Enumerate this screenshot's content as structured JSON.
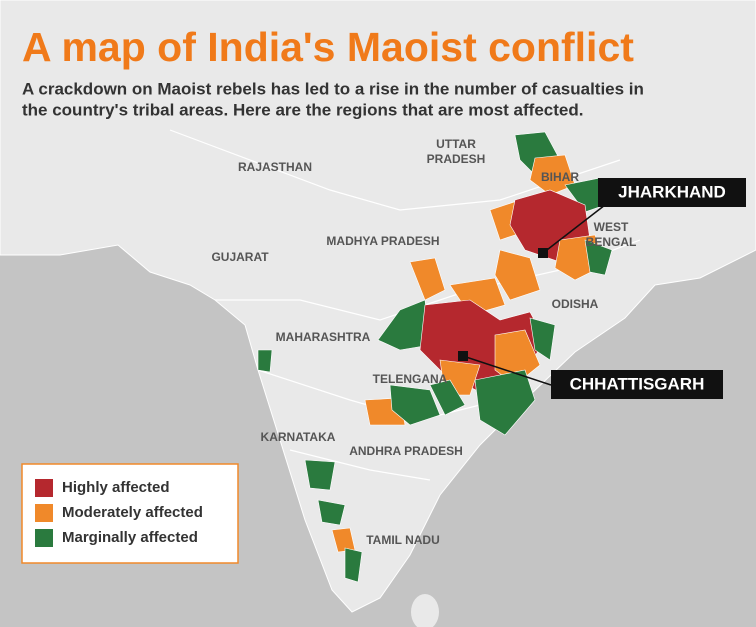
{
  "title": "A map of India's Maoist conflict",
  "subtitle_lines": [
    "A crackdown on Maoist rebels has led to a rise in the number of casualties in",
    "the country's tribal areas. Here are the regions that are most affected."
  ],
  "regions": [
    [
      "UTTAR",
      "PRADESH"
    ],
    [
      "RAJASTHAN"
    ],
    [
      "BIHAR"
    ],
    [
      "MADHYA PRADESH"
    ],
    [
      "GUJARAT"
    ],
    [
      "WEST",
      "BENGAL"
    ],
    [
      "ODISHA"
    ],
    [
      "MAHARASHTRA"
    ],
    [
      "TELENGANA"
    ],
    [
      "KARNATAKA"
    ],
    [
      "ANDHRA PRADESH"
    ],
    [
      "TAMIL NADU"
    ]
  ],
  "callouts": [
    "JHARKHAND",
    "CHHATTISGARH"
  ],
  "legend": [
    {
      "label": "Highly affected",
      "color": "#b5282e"
    },
    {
      "label": "Moderately affected",
      "color": "#f0892a"
    },
    {
      "label": "Marginally affected",
      "color": "#2a7a3e"
    }
  ]
}
